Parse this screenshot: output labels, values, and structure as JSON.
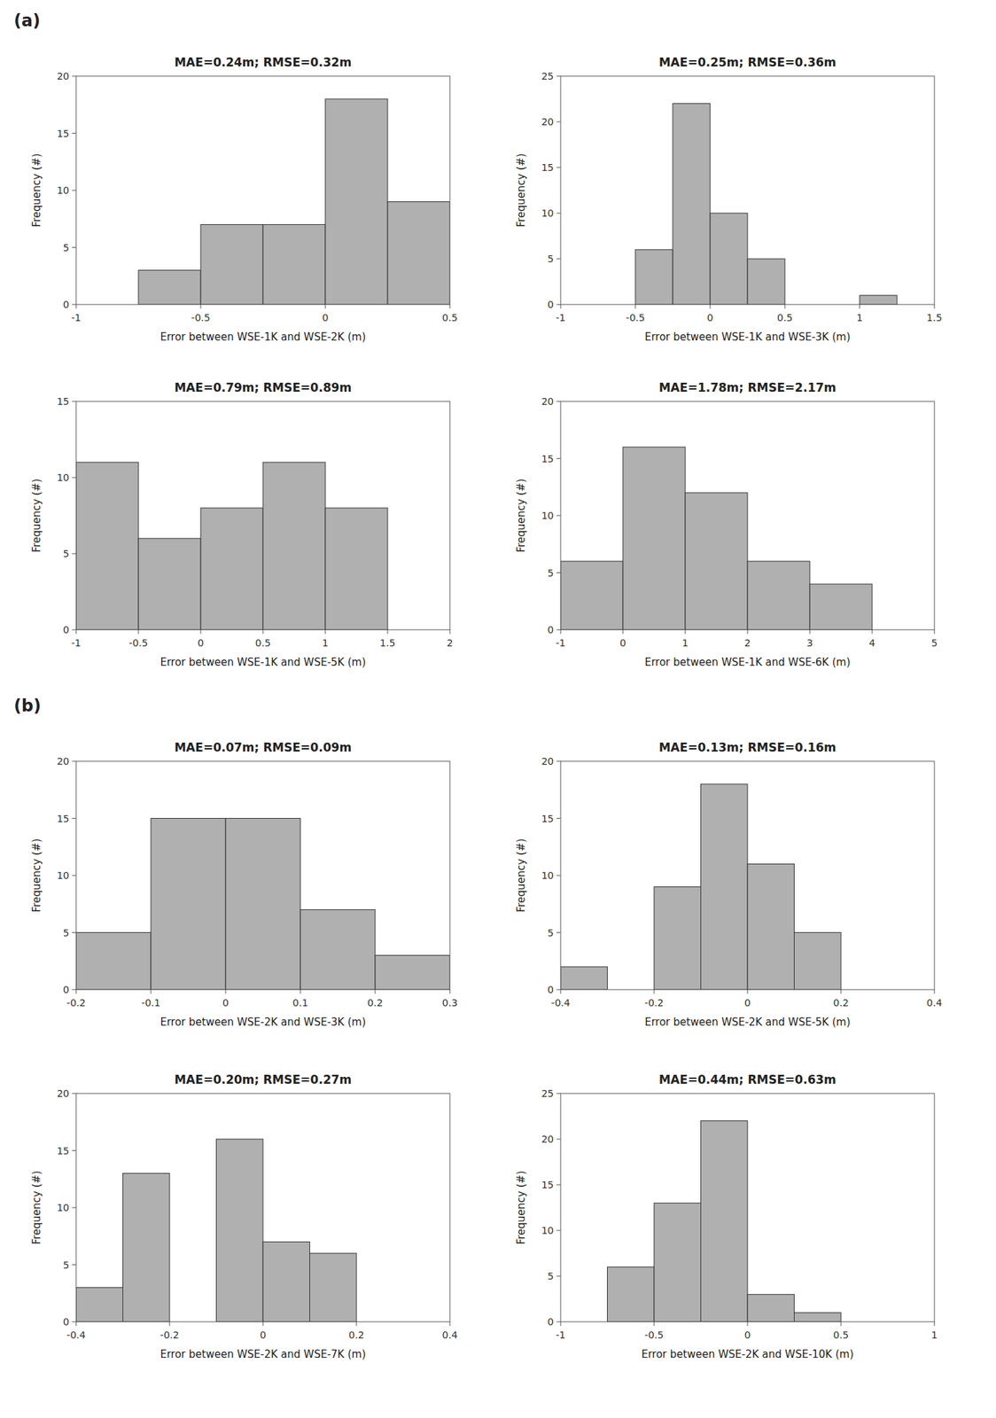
{
  "chart_data": [
    {
      "type": "histogram",
      "title": "MAE=0.24m;  RMSE=0.32m",
      "annotations": [
        "(a)"
      ],
      "xlabel": "Error between WSE-1K and WSE-2K (m)",
      "ylabel": "Frequency (#)",
      "bins": [
        -0.75,
        -0.5,
        -0.25,
        0.0,
        0.25,
        0.5
      ],
      "values": [
        3,
        7,
        7,
        18,
        9
      ],
      "color": "#b0b0b0",
      "xlim": [
        -1,
        0.5
      ],
      "ylim": [
        0,
        20
      ],
      "xticks": [
        -1,
        -0.5,
        0,
        0.5
      ],
      "yticks": [
        0,
        5,
        10,
        15,
        20
      ]
    },
    {
      "type": "histogram",
      "title": "MAE=0.25m;  RMSE=0.36m",
      "xlabel": "Error between WSE-1K and WSE-3K (m)",
      "ylabel": "Frequency (#)",
      "bins": [
        -0.75,
        -0.5,
        -0.25,
        0.0,
        0.25,
        0.5,
        0.75,
        1.0,
        1.25
      ],
      "values": [
        0,
        6,
        22,
        10,
        5,
        0,
        0,
        1
      ],
      "color": "#b0b0b0",
      "xlim": [
        -1,
        1.5
      ],
      "ylim": [
        0,
        25
      ],
      "xticks": [
        -1,
        -0.5,
        0,
        0.5,
        1,
        1.5
      ],
      "yticks": [
        0,
        5,
        10,
        15,
        20,
        25
      ]
    },
    {
      "type": "histogram",
      "title": "MAE=0.79m;  RMSE=0.89m",
      "xlabel": "Error between WSE-1K and WSE-5K (m)",
      "ylabel": "Frequency (#)",
      "bins": [
        -1.0,
        -0.5,
        0.0,
        0.5,
        1.0,
        1.5,
        2.0
      ],
      "values": [
        11,
        6,
        8,
        11,
        8,
        0
      ],
      "color": "#b0b0b0",
      "xlim": [
        -1,
        2
      ],
      "ylim": [
        0,
        15
      ],
      "xticks": [
        -1,
        -0.5,
        0,
        0.5,
        1,
        1.5,
        2
      ],
      "yticks": [
        0,
        5,
        10,
        15
      ]
    },
    {
      "type": "histogram",
      "title": "MAE=1.78m;  RMSE=2.17m",
      "xlabel": "Error between WSE-1K and WSE-6K (m)",
      "ylabel": "Frequency (#)",
      "bins": [
        -1.0,
        0.0,
        1.0,
        2.0,
        3.0,
        4.0,
        5.0
      ],
      "values": [
        6,
        16,
        12,
        6,
        4,
        0
      ],
      "color": "#b0b0b0",
      "xlim": [
        -1,
        5
      ],
      "ylim": [
        0,
        20
      ],
      "xticks": [
        -1,
        0,
        1,
        2,
        3,
        4,
        5
      ],
      "yticks": [
        0,
        5,
        10,
        15,
        20
      ]
    },
    {
      "type": "histogram",
      "title": "MAE=0.07m;  RMSE=0.09m",
      "annotations": [
        "(b)"
      ],
      "xlabel": "Error between WSE-2K and WSE-3K (m)",
      "ylabel": "Frequency (#)",
      "bins": [
        -0.2,
        -0.1,
        0.0,
        0.1,
        0.2,
        0.3
      ],
      "values": [
        5,
        15,
        15,
        7,
        3
      ],
      "color": "#b0b0b0",
      "xlim": [
        -0.2,
        0.3
      ],
      "ylim": [
        0,
        20
      ],
      "xticks": [
        -0.2,
        -0.1,
        0,
        0.1,
        0.2,
        0.3
      ],
      "yticks": [
        0,
        5,
        10,
        15,
        20
      ]
    },
    {
      "type": "histogram",
      "title": "MAE=0.13m;  RMSE=0.16m",
      "xlabel": "Error between WSE-2K and WSE-5K (m)",
      "ylabel": "Frequency (#)",
      "bins": [
        -0.4,
        -0.3,
        -0.2,
        -0.1,
        0.0,
        0.1,
        0.2,
        0.3,
        0.4
      ],
      "values": [
        2,
        0,
        9,
        18,
        11,
        5,
        0,
        0
      ],
      "color": "#b0b0b0",
      "xlim": [
        -0.4,
        0.4
      ],
      "ylim": [
        0,
        20
      ],
      "xticks": [
        -0.4,
        -0.2,
        0,
        0.2,
        0.4
      ],
      "yticks": [
        0,
        5,
        10,
        15,
        20
      ]
    },
    {
      "type": "histogram",
      "title": "MAE=0.20m;  RMSE=0.27m",
      "xlabel": "Error between WSE-2K and WSE-7K (m)",
      "ylabel": "Frequency (#)",
      "bins": [
        -0.4,
        -0.3,
        -0.2,
        -0.1,
        0.0,
        0.1,
        0.2,
        0.3,
        0.4
      ],
      "values": [
        3,
        13,
        0,
        16,
        7,
        6,
        0,
        0
      ],
      "color": "#b0b0b0",
      "xlim": [
        -0.4,
        0.4
      ],
      "ylim": [
        0,
        20
      ],
      "xticks": [
        -0.4,
        -0.2,
        0,
        0.2,
        0.4
      ],
      "yticks": [
        0,
        5,
        10,
        15,
        20
      ]
    },
    {
      "type": "histogram",
      "title": "MAE=0.44m;  RMSE=0.63m",
      "xlabel": "Error between WSE-2K and WSE-10K (m)",
      "ylabel": "Frequency (#)",
      "bins": [
        -0.75,
        -0.5,
        -0.25,
        0.0,
        0.25,
        0.5,
        0.75,
        1.0
      ],
      "values": [
        6,
        13,
        22,
        3,
        1,
        0,
        0
      ],
      "color": "#b0b0b0",
      "xlim": [
        -1,
        1
      ],
      "ylim": [
        0,
        25
      ],
      "xticks": [
        -1,
        -0.5,
        0,
        0.5,
        1
      ],
      "yticks": [
        0,
        5,
        10,
        15,
        20,
        25
      ]
    }
  ]
}
